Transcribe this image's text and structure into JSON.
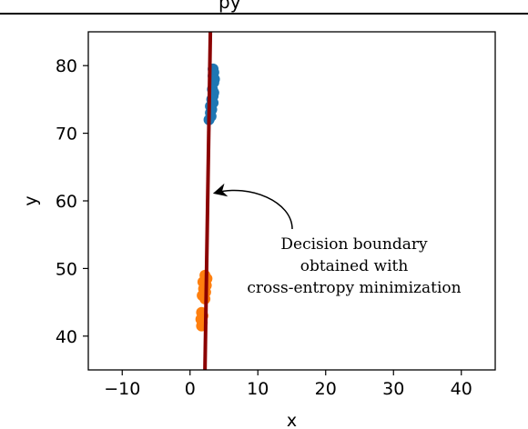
{
  "page": {
    "cut_title_fragment": "py"
  },
  "chart_data": {
    "type": "scatter",
    "xlabel": "x",
    "ylabel": "y",
    "xlim": [
      -15,
      45
    ],
    "ylim": [
      35,
      85
    ],
    "xticks": [
      -10,
      0,
      10,
      20,
      30,
      40
    ],
    "xtick_labels": [
      "−10",
      "0",
      "10",
      "20",
      "30",
      "40"
    ],
    "yticks": [
      40,
      50,
      60,
      70,
      80
    ],
    "ytick_labels": [
      "40",
      "50",
      "60",
      "70",
      "80"
    ],
    "grid": false,
    "legend": "none",
    "series": [
      {
        "color": "#1f77b4",
        "points": [
          [
            3.4,
            79.5
          ],
          [
            3.5,
            79.0
          ],
          [
            3.4,
            78.5
          ],
          [
            3.6,
            78.0
          ],
          [
            3.5,
            77.5
          ],
          [
            3.3,
            76.5
          ],
          [
            3.5,
            76.0
          ],
          [
            3.4,
            75.5
          ],
          [
            3.2,
            75.0
          ],
          [
            3.4,
            74.5
          ],
          [
            3.0,
            74.0
          ],
          [
            3.2,
            73.5
          ],
          [
            3.0,
            73.0
          ],
          [
            3.1,
            72.5
          ],
          [
            2.8,
            72.0
          ]
        ]
      },
      {
        "color": "#ff7f0e",
        "points": [
          [
            2.2,
            49.0
          ],
          [
            2.5,
            48.5
          ],
          [
            1.9,
            48.0
          ],
          [
            2.4,
            47.5
          ],
          [
            2.0,
            47.0
          ],
          [
            2.3,
            46.5
          ],
          [
            1.8,
            46.0
          ],
          [
            2.2,
            45.5
          ],
          [
            1.7,
            43.5
          ],
          [
            1.9,
            43.0
          ],
          [
            1.6,
            42.5
          ],
          [
            1.8,
            42.0
          ],
          [
            1.7,
            41.5
          ]
        ]
      }
    ],
    "boundary_line": {
      "color": "#8b0000",
      "points": [
        [
          2.2,
          35.0
        ],
        [
          3.0,
          85.0
        ]
      ]
    },
    "annotation": {
      "lines": [
        "Decision boundary",
        "obtained with",
        "cross-entropy minimization"
      ],
      "arrow_target": [
        3.5,
        61.2
      ]
    }
  }
}
